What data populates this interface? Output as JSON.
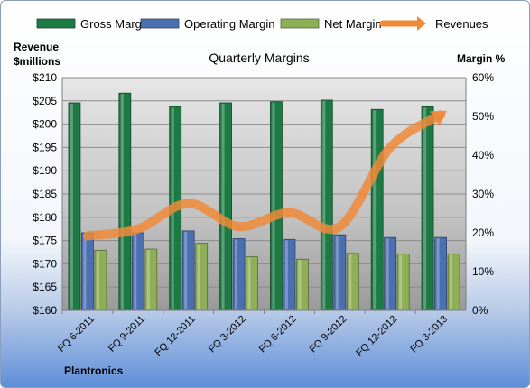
{
  "chart_data": {
    "type": "bar",
    "title": "Quarterly Margins",
    "left_axis_label": [
      "Revenue",
      "$millions"
    ],
    "right_axis_label": "Margin %",
    "footer": "Plantronics",
    "categories": [
      "FQ 6-2011",
      "FQ 9-2011",
      "FQ 12-2011",
      "FQ 3-2012",
      "FQ 6-2012",
      "FQ 9-2012",
      "FQ 12-2012",
      "FQ 3-2013"
    ],
    "left_ylim": [
      160,
      210
    ],
    "left_ticks": [
      "$210",
      "$205",
      "$200",
      "$195",
      "$190",
      "$185",
      "$180",
      "$175",
      "$170",
      "$165",
      "$160"
    ],
    "right_ylim": [
      0,
      60
    ],
    "right_ticks": [
      "60%",
      "50%",
      "40%",
      "30%",
      "20%",
      "10%",
      "0%"
    ],
    "series": [
      {
        "name": "Gross Margin",
        "axis": "right",
        "color": "#1e7a45",
        "values": [
          53.5,
          56,
          52.5,
          53.5,
          53.8,
          54.2,
          51.8,
          52.5
        ]
      },
      {
        "name": "Operating Margin",
        "axis": "right",
        "color": "#4a70b0",
        "values": [
          20,
          20,
          20.5,
          18.5,
          18.3,
          19.5,
          18.8,
          18.8
        ]
      },
      {
        "name": "Net Margin",
        "axis": "right",
        "color": "#8fae58",
        "values": [
          15.5,
          15.8,
          17.3,
          13.8,
          13.2,
          14.7,
          14.5,
          14.5
        ]
      },
      {
        "name": "Revenues",
        "axis": "left",
        "type": "line",
        "color": "#f08a38",
        "values": [
          176,
          177.5,
          183,
          178,
          181,
          178,
          195,
          202
        ]
      }
    ],
    "grid": true,
    "legend_position": "top"
  }
}
